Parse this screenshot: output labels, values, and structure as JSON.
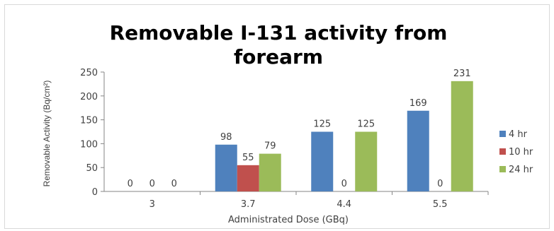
{
  "chart_data": {
    "type": "bar",
    "title_line1": "Removable I-131 activity from",
    "title_line2": "forearm",
    "xlabel": "Administrated Dose (GBq)",
    "ylabel": "Removable Activity (Bq/cm²)",
    "categories": [
      "3",
      "3.7",
      "4.4",
      "5.5"
    ],
    "ylim": [
      0,
      250
    ],
    "yticks": [
      0,
      50,
      100,
      150,
      200,
      250
    ],
    "legend_position": "right",
    "grid": false,
    "series": [
      {
        "name": "4 hr",
        "color": "#4f81bd",
        "values": [
          0,
          98,
          125,
          169
        ]
      },
      {
        "name": "10 hr",
        "color": "#c0504d",
        "values": [
          0,
          55,
          0,
          0
        ]
      },
      {
        "name": "24 hr",
        "color": "#9bbb59",
        "values": [
          0,
          79,
          125,
          231
        ]
      }
    ]
  }
}
